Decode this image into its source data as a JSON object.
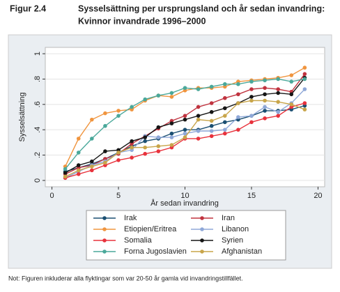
{
  "figure_label": "Figur 2.4",
  "chart_data": {
    "type": "line",
    "title": "Sysselsättning per ursprungsland och år sedan invandring:",
    "subtitle": "Kvinnor invandrade 1996–2000",
    "x_label": "År sedan invandring",
    "y_label": "Sysselsättning",
    "x": [
      1,
      2,
      3,
      4,
      5,
      6,
      7,
      8,
      9,
      10,
      11,
      12,
      13,
      14,
      15,
      16,
      17,
      18,
      19
    ],
    "xlim": [
      -0.5,
      20.5
    ],
    "xticks": [
      0,
      5,
      10,
      15,
      20
    ],
    "ylim": [
      -0.05,
      1.05
    ],
    "yticks": [
      0,
      {
        "value": 0.2,
        "label": ".2"
      },
      {
        "value": 0.4,
        "label": ".4"
      },
      {
        "value": 0.6,
        "label": ".6"
      },
      {
        "value": 0.8,
        "label": ".8"
      },
      1
    ],
    "grid": true,
    "series": [
      {
        "name": "Irak",
        "color": "#1b4f72",
        "values": [
          0.07,
          0.1,
          0.13,
          0.17,
          0.22,
          0.27,
          0.31,
          0.33,
          0.37,
          0.4,
          0.4,
          0.43,
          0.46,
          0.48,
          0.51,
          0.55,
          0.55,
          0.56,
          0.59
        ]
      },
      {
        "name": "Iran",
        "color": "#c0333f",
        "values": [
          0.05,
          0.1,
          0.12,
          0.17,
          0.21,
          0.29,
          0.35,
          0.41,
          0.47,
          0.51,
          0.58,
          0.61,
          0.65,
          0.68,
          0.72,
          0.73,
          0.72,
          0.7,
          0.84
        ]
      },
      {
        "name": "Etiopien/Eritrea",
        "color": "#f0953f",
        "values": [
          0.11,
          0.33,
          0.48,
          0.53,
          0.55,
          0.56,
          0.63,
          0.67,
          0.66,
          0.71,
          0.73,
          0.73,
          0.74,
          0.78,
          0.79,
          0.8,
          0.81,
          0.83,
          0.89
        ]
      },
      {
        "name": "Libanon",
        "color": "#8fa8d8",
        "values": [
          0.02,
          0.07,
          0.12,
          0.15,
          0.22,
          0.24,
          0.35,
          0.34,
          0.34,
          0.37,
          0.39,
          0.39,
          0.4,
          0.5,
          0.51,
          0.58,
          0.54,
          0.61,
          0.72
        ]
      },
      {
        "name": "Somalia",
        "color": "#e8323c",
        "values": [
          0.02,
          0.05,
          0.08,
          0.12,
          0.16,
          0.18,
          0.21,
          0.23,
          0.26,
          0.33,
          0.33,
          0.35,
          0.37,
          0.4,
          0.46,
          0.49,
          0.51,
          0.58,
          0.61
        ]
      },
      {
        "name": "Syrien",
        "color": "#151515",
        "values": [
          0.06,
          0.12,
          0.15,
          0.23,
          0.24,
          0.31,
          0.34,
          0.42,
          0.45,
          0.48,
          0.51,
          0.54,
          0.57,
          0.61,
          0.66,
          0.68,
          0.69,
          0.68,
          0.81
        ]
      },
      {
        "name": "Forna Jugoslavien",
        "color": "#4aa89a",
        "values": [
          0.09,
          0.22,
          0.33,
          0.43,
          0.51,
          0.58,
          0.64,
          0.67,
          0.69,
          0.73,
          0.72,
          0.74,
          0.76,
          0.76,
          0.78,
          0.79,
          0.8,
          0.78,
          0.8
        ]
      },
      {
        "name": "Afghanistan",
        "color": "#c8a54a",
        "values": [
          0.03,
          0.08,
          0.11,
          0.14,
          0.22,
          0.26,
          0.26,
          0.27,
          0.28,
          0.34,
          0.48,
          0.47,
          0.51,
          0.61,
          0.63,
          0.63,
          0.62,
          0.6,
          0.56
        ]
      }
    ]
  },
  "note": "Not: Figuren inkluderar alla flyktingar som var 20-50 år gamla vid invandringstillfället."
}
